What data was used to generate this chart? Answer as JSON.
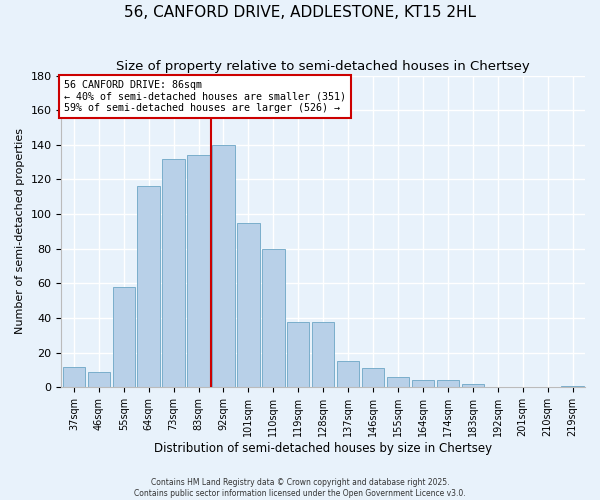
{
  "title": "56, CANFORD DRIVE, ADDLESTONE, KT15 2HL",
  "subtitle": "Size of property relative to semi-detached houses in Chertsey",
  "xlabel": "Distribution of semi-detached houses by size in Chertsey",
  "ylabel": "Number of semi-detached properties",
  "bar_labels": [
    "37sqm",
    "46sqm",
    "55sqm",
    "64sqm",
    "73sqm",
    "83sqm",
    "92sqm",
    "101sqm",
    "110sqm",
    "119sqm",
    "128sqm",
    "137sqm",
    "146sqm",
    "155sqm",
    "164sqm",
    "174sqm",
    "183sqm",
    "192sqm",
    "201sqm",
    "210sqm",
    "219sqm"
  ],
  "bar_values": [
    12,
    9,
    58,
    116,
    132,
    134,
    140,
    95,
    80,
    38,
    38,
    15,
    11,
    6,
    4,
    4,
    2,
    0,
    0,
    0,
    1
  ],
  "bar_color": "#b8d0e8",
  "bar_edge_color": "#7aaecb",
  "vline_color": "#cc0000",
  "annotation_title": "56 CANFORD DRIVE: 86sqm",
  "annotation_line1": "← 40% of semi-detached houses are smaller (351)",
  "annotation_line2": "59% of semi-detached houses are larger (526) →",
  "annotation_box_color": "#ffffff",
  "annotation_box_edge": "#cc0000",
  "ylim": [
    0,
    180
  ],
  "yticks": [
    0,
    20,
    40,
    60,
    80,
    100,
    120,
    140,
    160,
    180
  ],
  "footer1": "Contains HM Land Registry data © Crown copyright and database right 2025.",
  "footer2": "Contains public sector information licensed under the Open Government Licence v3.0.",
  "bg_color": "#e8f2fb",
  "grid_color": "#ffffff",
  "title_fontsize": 11,
  "subtitle_fontsize": 9.5,
  "xlabel_fontsize": 8.5,
  "ylabel_fontsize": 8
}
